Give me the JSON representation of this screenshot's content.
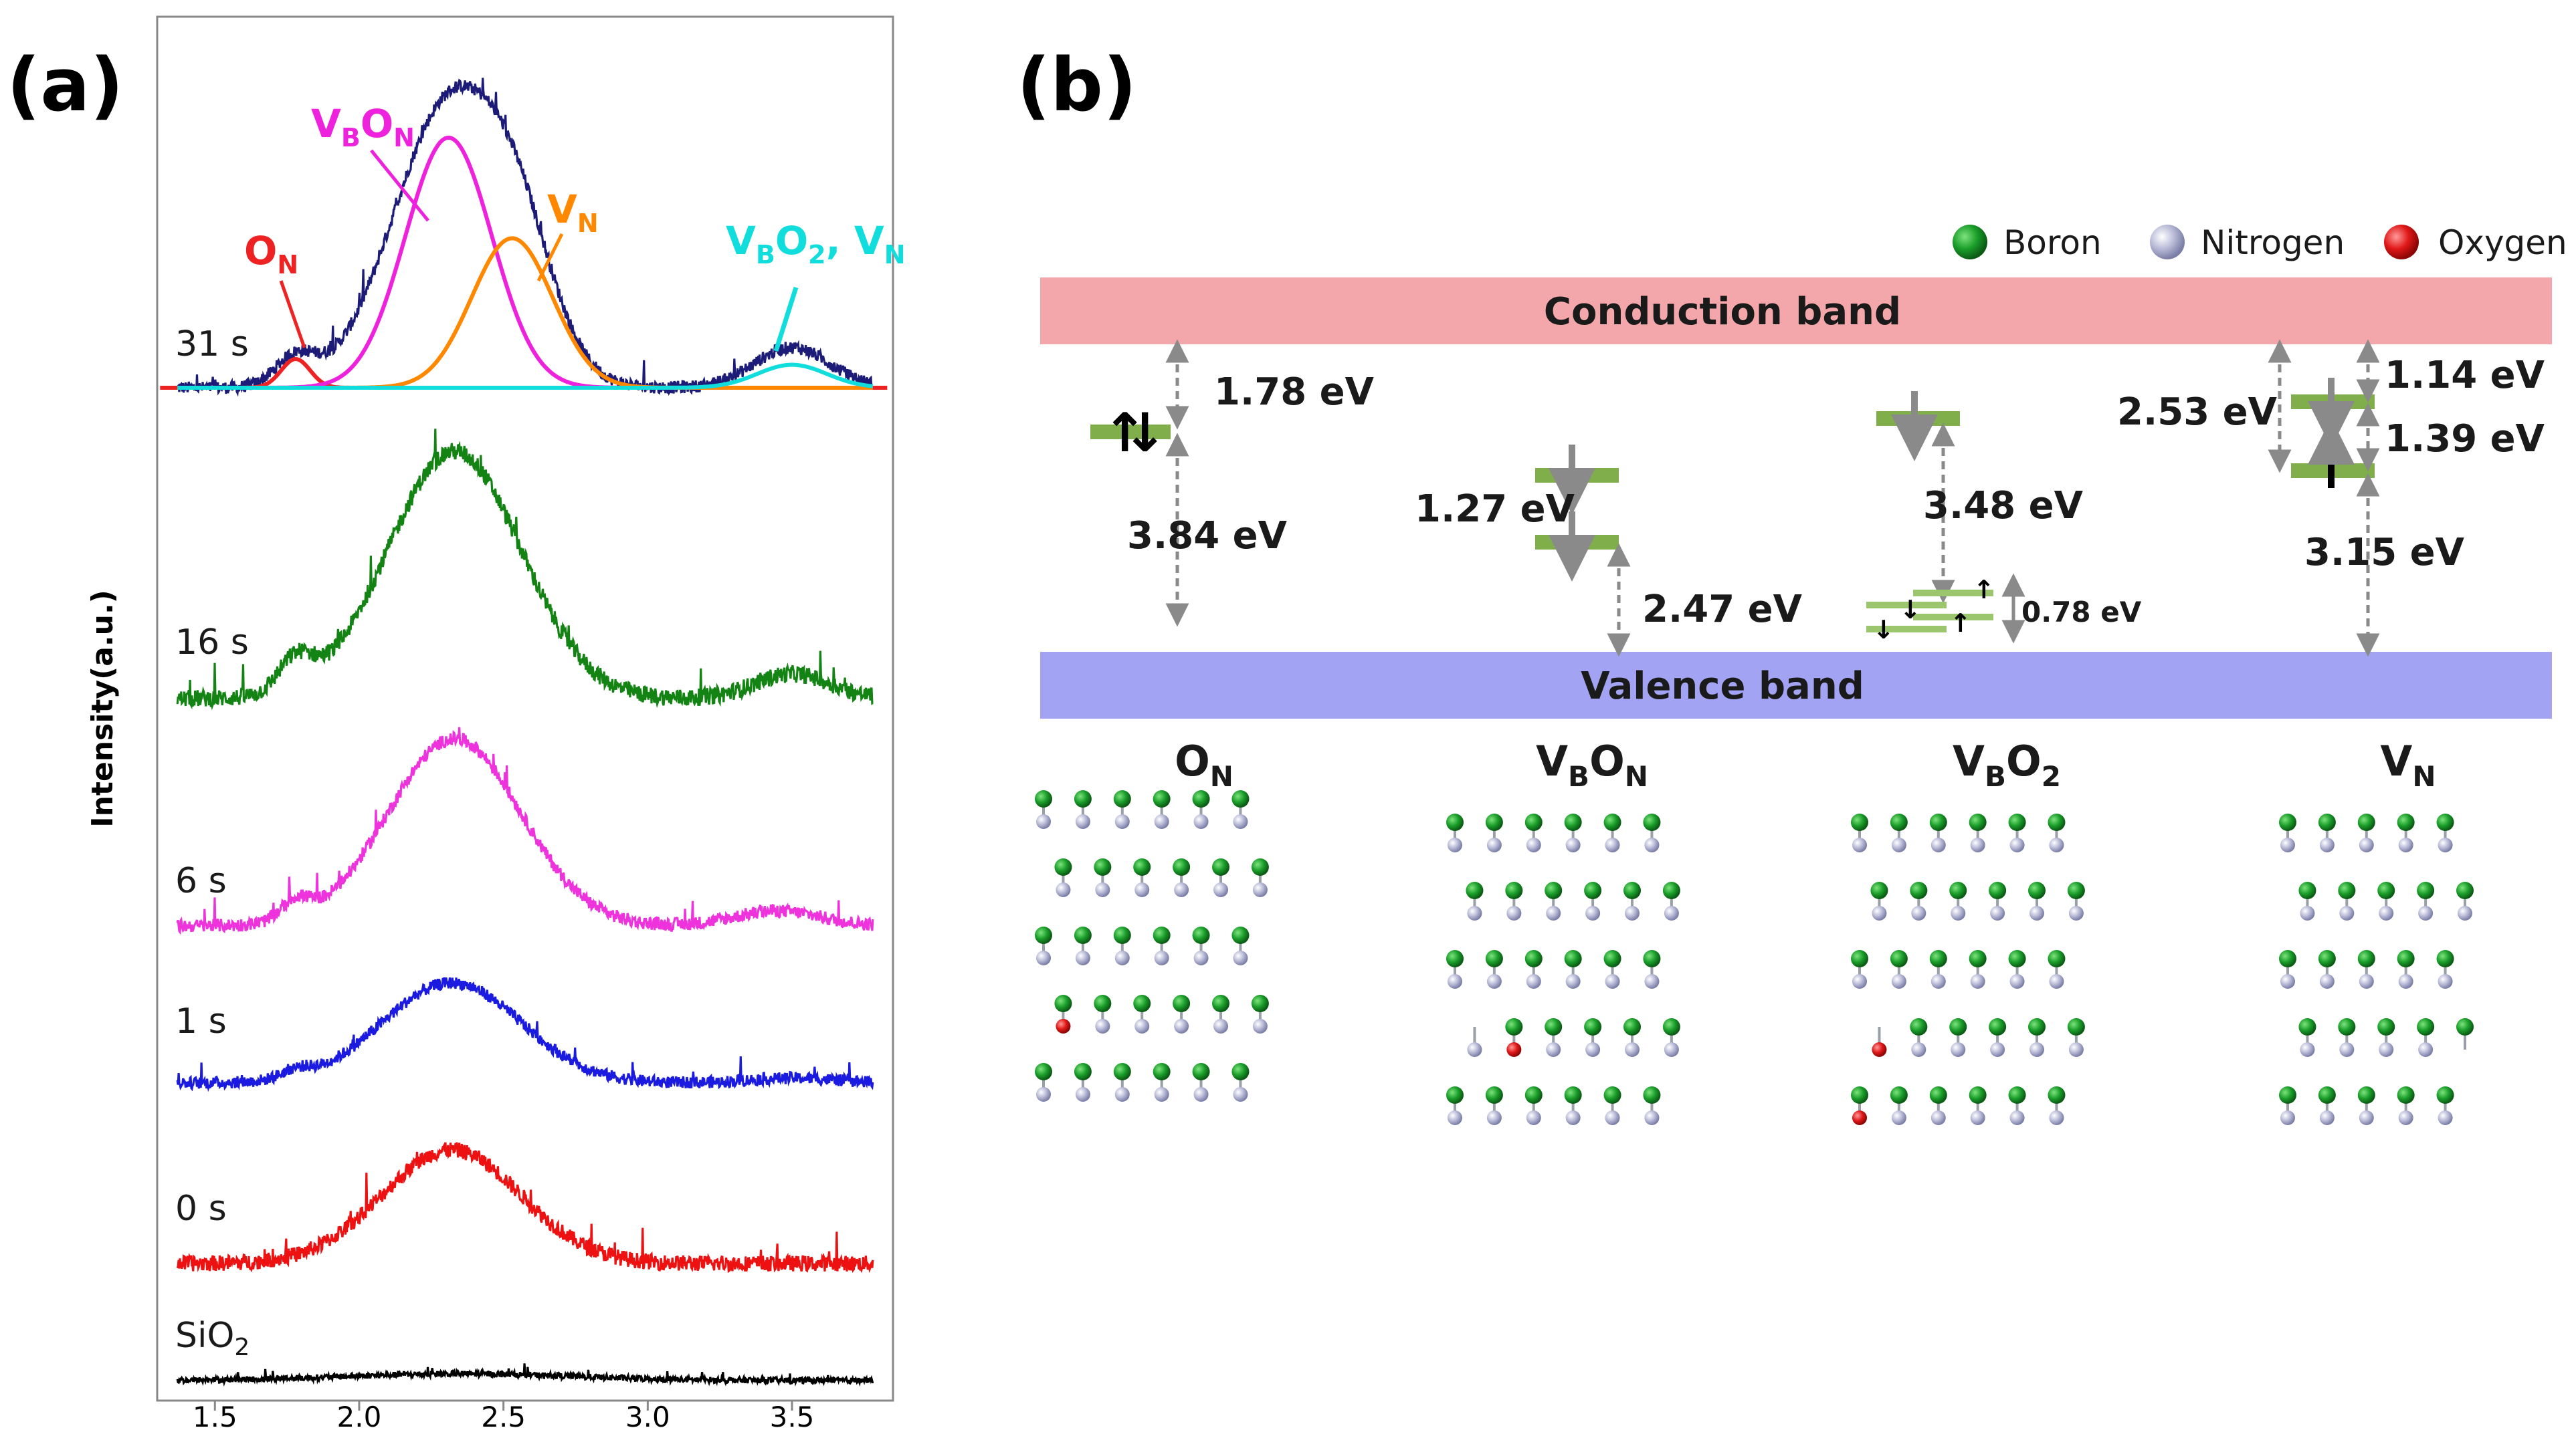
{
  "panel_a": {
    "label": "(a)",
    "ylabel": "Intensity(a.u.)",
    "peak_labels": [
      {
        "key": "ON",
        "base": "O",
        "sub": "N",
        "color": "#ee2222"
      },
      {
        "key": "VBON",
        "parts": [
          [
            "V",
            "B"
          ],
          [
            "O",
            "N"
          ]
        ],
        "color": "#ee22dd"
      },
      {
        "key": "VN",
        "base": "V",
        "sub": "N",
        "color": "#ff8800"
      },
      {
        "key": "VBO2VN",
        "text": "V_B O_2 , V_N",
        "color": "#11dddd"
      }
    ]
  },
  "panel_b": {
    "label": "(b)",
    "legend": [
      {
        "name": "Boron",
        "color": "#1a9e2a"
      },
      {
        "name": "Nitrogen",
        "color": "#a8aac8"
      },
      {
        "name": "Oxygen",
        "color": "#e01818"
      }
    ],
    "conduction_band": "Conduction band",
    "valence_band": "Valence band",
    "band_colors": {
      "conduction": "#f4a7aa",
      "valence": "#a3a3f4",
      "level": "#7fae4a"
    },
    "energies": {
      "ON_1": "1.78 eV",
      "ON_2": "3.84 eV",
      "VBON_1": "1.27 eV",
      "VBON_2": "2.47 eV",
      "VBO2_1": "3.48 eV",
      "VBO2_2": "0.78 eV",
      "VN_1": "2.53 eV",
      "VN_2": "1.14 eV",
      "VN_3": "1.39 eV",
      "VN_4": "3.15 eV"
    },
    "defects": [
      {
        "base": "O",
        "sub": "N"
      },
      {
        "parts": [
          [
            "V",
            "B"
          ],
          [
            "O",
            "N"
          ]
        ]
      },
      {
        "parts": [
          [
            "V",
            "B"
          ],
          [
            "O",
            "2"
          ]
        ]
      },
      {
        "base": "V",
        "sub": "N"
      }
    ]
  },
  "chart_data": {
    "type": "line",
    "title": "",
    "xlabel": "",
    "ylabel": "Intensity(a.u.)",
    "xlim": [
      1.3,
      3.85
    ],
    "xticks": [
      "1.5",
      "2.0",
      "2.5",
      "3.0",
      "3.5"
    ],
    "xtick_values": [
      1.5,
      2.0,
      2.5,
      3.0,
      3.5
    ],
    "series": [
      {
        "name": "31 s",
        "color": "#1c1c78",
        "peaks": [
          [
            1.78,
            0.1,
            0.07
          ],
          [
            2.32,
            1.0,
            0.2
          ],
          [
            2.56,
            0.28,
            0.12
          ],
          [
            3.5,
            0.14,
            0.13
          ]
        ],
        "amp": 1.0,
        "noise": 0.022
      },
      {
        "name": "16 s",
        "color": "#138413",
        "peaks": [
          [
            1.78,
            0.13,
            0.06
          ],
          [
            2.33,
            1.0,
            0.23
          ],
          [
            3.5,
            0.1,
            0.13
          ]
        ],
        "amp": 1.0,
        "noise": 0.035
      },
      {
        "name": "6 s",
        "color": "#ee33dd",
        "peaks": [
          [
            1.78,
            0.1,
            0.05
          ],
          [
            2.33,
            1.0,
            0.23
          ],
          [
            3.45,
            0.08,
            0.15
          ]
        ],
        "amp": 1.0,
        "noise": 0.035
      },
      {
        "name": "1 s",
        "color": "#1a1ae0",
        "peaks": [
          [
            1.78,
            0.08,
            0.05
          ],
          [
            2.32,
            1.0,
            0.24
          ],
          [
            3.5,
            0.05,
            0.15
          ]
        ],
        "amp": 1.0,
        "noise": 0.06
      },
      {
        "name": "0 s",
        "color": "#ee1111",
        "peaks": [
          [
            2.32,
            1.0,
            0.24
          ]
        ],
        "amp": 1.0,
        "noise": 0.07
      },
      {
        "name": "SiO2",
        "display_base": "SiO",
        "display_sub": "2",
        "color": "#000000",
        "peaks": [
          [
            2.35,
            0.4,
            0.4
          ]
        ],
        "amp": 1.0,
        "noise": 0.18
      }
    ],
    "fit_components": [
      {
        "name": "ON",
        "color": "#ee2222",
        "center": 1.78,
        "width": 0.05,
        "rel_height": 0.1
      },
      {
        "name": "VBON",
        "color": "#ee22dd",
        "center": 2.31,
        "width": 0.15,
        "rel_height": 0.87
      },
      {
        "name": "VN",
        "color": "#ff8800",
        "center": 2.53,
        "width": 0.14,
        "rel_height": 0.52
      },
      {
        "name": "VBO2, VN",
        "color": "#11dddd",
        "center": 3.5,
        "width": 0.12,
        "rel_height": 0.08
      }
    ]
  }
}
